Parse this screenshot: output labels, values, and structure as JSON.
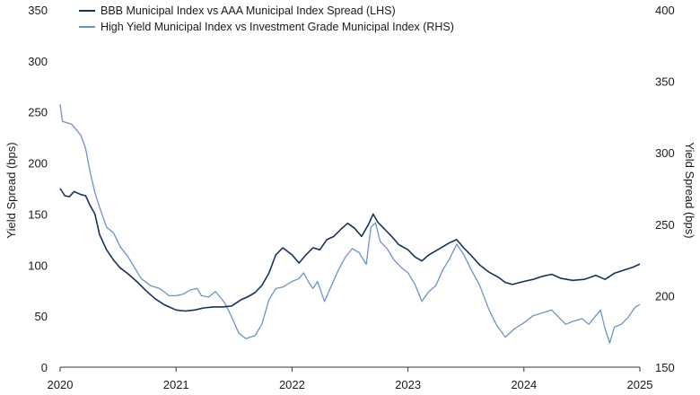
{
  "chart_data": {
    "type": "line",
    "title": "",
    "xlabel": "",
    "ylabel_left": "Yield Spread (bps)",
    "ylabel_right": "Yield Spread (bps)",
    "x_ticks": [
      "2020",
      "2021",
      "2022",
      "2023",
      "2024",
      "2025"
    ],
    "xlim": [
      2020.0,
      2025.0
    ],
    "ylim_left": [
      0,
      350
    ],
    "ylim_right": [
      150,
      400
    ],
    "y_ticks_left": [
      "0",
      "50",
      "100",
      "150",
      "200",
      "250",
      "300",
      "350"
    ],
    "y_ticks_right": [
      "150",
      "200",
      "250",
      "300",
      "350",
      "400"
    ],
    "grid": false,
    "legend_position": "top-left",
    "series": [
      {
        "name": "BBB Municipal Index vs AAA Municipal Index Spread (LHS)",
        "axis": "left",
        "color": "#14325c",
        "points": [
          [
            2020.0,
            175
          ],
          [
            2020.04,
            168
          ],
          [
            2020.08,
            167
          ],
          [
            2020.12,
            172
          ],
          [
            2020.18,
            169
          ],
          [
            2020.22,
            168
          ],
          [
            2020.26,
            158
          ],
          [
            2020.3,
            150
          ],
          [
            2020.34,
            130
          ],
          [
            2020.4,
            115
          ],
          [
            2020.46,
            105
          ],
          [
            2020.52,
            97
          ],
          [
            2020.58,
            92
          ],
          [
            2020.66,
            84
          ],
          [
            2020.74,
            75
          ],
          [
            2020.82,
            67
          ],
          [
            2020.9,
            61
          ],
          [
            2021.0,
            56
          ],
          [
            2021.08,
            55
          ],
          [
            2021.16,
            56
          ],
          [
            2021.24,
            58
          ],
          [
            2021.32,
            59
          ],
          [
            2021.4,
            59
          ],
          [
            2021.48,
            60
          ],
          [
            2021.56,
            66
          ],
          [
            2021.62,
            69
          ],
          [
            2021.68,
            73
          ],
          [
            2021.74,
            80
          ],
          [
            2021.8,
            92
          ],
          [
            2021.86,
            110
          ],
          [
            2021.92,
            117
          ],
          [
            2022.0,
            110
          ],
          [
            2022.06,
            102
          ],
          [
            2022.12,
            110
          ],
          [
            2022.18,
            117
          ],
          [
            2022.24,
            115
          ],
          [
            2022.3,
            125
          ],
          [
            2022.36,
            128
          ],
          [
            2022.42,
            135
          ],
          [
            2022.48,
            141
          ],
          [
            2022.54,
            136
          ],
          [
            2022.6,
            128
          ],
          [
            2022.66,
            140
          ],
          [
            2022.7,
            150
          ],
          [
            2022.74,
            142
          ],
          [
            2022.8,
            135
          ],
          [
            2022.86,
            128
          ],
          [
            2022.92,
            120
          ],
          [
            2023.0,
            115
          ],
          [
            2023.06,
            108
          ],
          [
            2023.12,
            104
          ],
          [
            2023.18,
            110
          ],
          [
            2023.24,
            114
          ],
          [
            2023.3,
            118
          ],
          [
            2023.36,
            122
          ],
          [
            2023.42,
            125
          ],
          [
            2023.48,
            117
          ],
          [
            2023.54,
            110
          ],
          [
            2023.62,
            100
          ],
          [
            2023.7,
            93
          ],
          [
            2023.78,
            88
          ],
          [
            2023.84,
            83
          ],
          [
            2023.9,
            81
          ],
          [
            2024.0,
            84
          ],
          [
            2024.08,
            86
          ],
          [
            2024.16,
            89
          ],
          [
            2024.24,
            91
          ],
          [
            2024.32,
            87
          ],
          [
            2024.42,
            85
          ],
          [
            2024.52,
            86
          ],
          [
            2024.62,
            90
          ],
          [
            2024.7,
            86
          ],
          [
            2024.78,
            92
          ],
          [
            2024.86,
            95
          ],
          [
            2024.94,
            98
          ],
          [
            2025.0,
            101
          ]
        ]
      },
      {
        "name": "High Yield Municipal Index vs Investment Grade Municipal Index (RHS)",
        "axis": "right",
        "color": "#6b93c9",
        "points": [
          [
            2020.0,
            334
          ],
          [
            2020.02,
            322
          ],
          [
            2020.06,
            321
          ],
          [
            2020.1,
            320
          ],
          [
            2020.14,
            316
          ],
          [
            2020.18,
            312
          ],
          [
            2020.22,
            303
          ],
          [
            2020.26,
            286
          ],
          [
            2020.3,
            272
          ],
          [
            2020.34,
            262
          ],
          [
            2020.4,
            248
          ],
          [
            2020.46,
            244
          ],
          [
            2020.52,
            234
          ],
          [
            2020.58,
            228
          ],
          [
            2020.64,
            220
          ],
          [
            2020.7,
            212
          ],
          [
            2020.78,
            207
          ],
          [
            2020.86,
            205
          ],
          [
            2020.94,
            200
          ],
          [
            2021.0,
            200
          ],
          [
            2021.06,
            201
          ],
          [
            2021.12,
            204
          ],
          [
            2021.18,
            205
          ],
          [
            2021.22,
            200
          ],
          [
            2021.28,
            199
          ],
          [
            2021.34,
            203
          ],
          [
            2021.42,
            195
          ],
          [
            2021.48,
            185
          ],
          [
            2021.54,
            174
          ],
          [
            2021.6,
            170
          ],
          [
            2021.68,
            172
          ],
          [
            2021.74,
            180
          ],
          [
            2021.8,
            197
          ],
          [
            2021.86,
            205
          ],
          [
            2021.92,
            206
          ],
          [
            2022.0,
            210
          ],
          [
            2022.06,
            212
          ],
          [
            2022.1,
            216
          ],
          [
            2022.14,
            210
          ],
          [
            2022.18,
            205
          ],
          [
            2022.22,
            210
          ],
          [
            2022.28,
            196
          ],
          [
            2022.34,
            207
          ],
          [
            2022.4,
            218
          ],
          [
            2022.46,
            227
          ],
          [
            2022.52,
            233
          ],
          [
            2022.58,
            230
          ],
          [
            2022.64,
            222
          ],
          [
            2022.68,
            248
          ],
          [
            2022.72,
            251
          ],
          [
            2022.76,
            238
          ],
          [
            2022.82,
            233
          ],
          [
            2022.88,
            225
          ],
          [
            2022.94,
            220
          ],
          [
            2023.0,
            216
          ],
          [
            2023.06,
            208
          ],
          [
            2023.12,
            196
          ],
          [
            2023.18,
            203
          ],
          [
            2023.24,
            207
          ],
          [
            2023.3,
            218
          ],
          [
            2023.36,
            226
          ],
          [
            2023.42,
            236
          ],
          [
            2023.48,
            229
          ],
          [
            2023.54,
            219
          ],
          [
            2023.62,
            207
          ],
          [
            2023.7,
            190
          ],
          [
            2023.76,
            180
          ],
          [
            2023.84,
            171
          ],
          [
            2023.92,
            177
          ],
          [
            2024.0,
            181
          ],
          [
            2024.08,
            186
          ],
          [
            2024.16,
            188
          ],
          [
            2024.24,
            190
          ],
          [
            2024.3,
            185
          ],
          [
            2024.36,
            180
          ],
          [
            2024.42,
            182
          ],
          [
            2024.5,
            184
          ],
          [
            2024.56,
            180
          ],
          [
            2024.62,
            186
          ],
          [
            2024.66,
            190
          ],
          [
            2024.7,
            177
          ],
          [
            2024.74,
            167
          ],
          [
            2024.78,
            178
          ],
          [
            2024.84,
            180
          ],
          [
            2024.9,
            185
          ],
          [
            2024.96,
            192
          ],
          [
            2025.0,
            194
          ]
        ]
      }
    ]
  }
}
